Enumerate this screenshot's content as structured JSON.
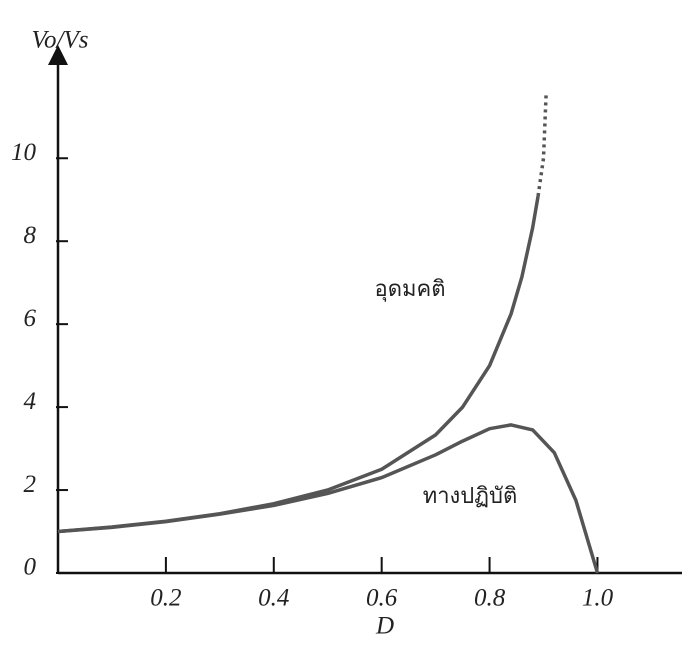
{
  "chart_data": {
    "type": "line",
    "ylabel": "Vo/Vs",
    "xlabel": "D",
    "xlim": [
      0,
      1.153
    ],
    "ylim": [
      0,
      12.2
    ],
    "xticks": [
      0.2,
      0.4,
      0.6,
      0.8,
      {
        "value": 1,
        "label": "1.0"
      }
    ],
    "yticks": [
      0,
      2,
      4,
      6,
      8,
      10
    ],
    "series": [
      {
        "name": "อุดมคติ",
        "color": "#555555",
        "style": "solid",
        "x": [
          0,
          0.1,
          0.2,
          0.3,
          0.4,
          0.5,
          0.6,
          0.7,
          0.75,
          0.8,
          0.84,
          0.86,
          0.88,
          0.89
        ],
        "values": [
          1,
          1.11,
          1.25,
          1.43,
          1.67,
          2,
          2.5,
          3.33,
          4,
          5,
          6.25,
          7.14,
          8.33,
          9.09
        ]
      },
      {
        "color": "#555555",
        "style": "dotted",
        "x": [
          0.89,
          0.9,
          0.905
        ],
        "values": [
          9.09,
          10,
          11.6
        ]
      },
      {
        "name": "ทางปฏิบัติ",
        "color": "#555555",
        "style": "solid",
        "x": [
          0,
          0.1,
          0.2,
          0.3,
          0.4,
          0.5,
          0.6,
          0.7,
          0.75,
          0.8,
          0.84,
          0.88,
          0.92,
          0.96,
          1.0
        ],
        "values": [
          1,
          1.1,
          1.24,
          1.42,
          1.63,
          1.92,
          2.3,
          2.85,
          3.18,
          3.48,
          3.57,
          3.45,
          2.9,
          1.75,
          0
        ]
      }
    ]
  }
}
